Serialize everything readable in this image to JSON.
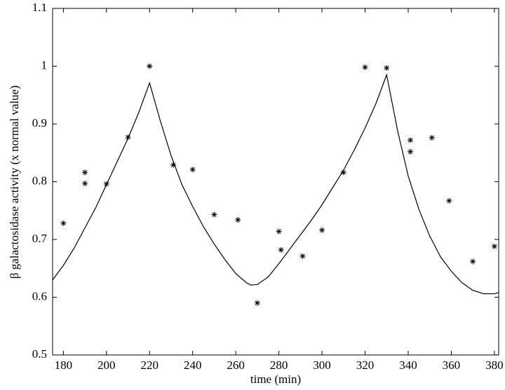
{
  "chart_data": {
    "type": "scatter",
    "x_label": "time (min)",
    "y_label": "β galactosidase activity (x normal value)",
    "xlim": [
      175,
      382
    ],
    "ylim": [
      0.5,
      1.1
    ],
    "xticks": [
      180,
      200,
      220,
      240,
      260,
      280,
      300,
      320,
      340,
      360,
      380
    ],
    "yticks": [
      0.5,
      0.6,
      0.7,
      0.8,
      0.9,
      1,
      1.1
    ],
    "series": [
      {
        "mode": "markers",
        "color": "#000000",
        "x": [
          180,
          190,
          190,
          200,
          210,
          220,
          231,
          240,
          250,
          261,
          270,
          280,
          281,
          291,
          300,
          310,
          320,
          330,
          341,
          341,
          351,
          359,
          370,
          380
        ],
        "values": [
          0.728,
          0.816,
          0.797,
          0.796,
          0.877,
          1.0,
          0.829,
          0.821,
          0.743,
          0.734,
          0.59,
          0.714,
          0.682,
          0.671,
          0.716,
          0.816,
          0.998,
          0.997,
          0.872,
          0.852,
          0.876,
          0.767,
          0.662,
          0.688
        ]
      },
      {
        "mode": "line",
        "color": "#000000",
        "x": [
          175,
          180,
          185,
          190,
          195,
          200,
          205,
          210,
          215,
          220,
          225,
          230,
          235,
          240,
          245,
          250,
          255,
          260,
          265,
          267,
          270,
          275,
          280,
          285,
          290,
          295,
          300,
          305,
          310,
          315,
          320,
          325,
          330,
          335,
          340,
          345,
          350,
          355,
          360,
          365,
          370,
          375,
          380,
          382
        ],
        "values": [
          0.63,
          0.655,
          0.685,
          0.72,
          0.755,
          0.795,
          0.835,
          0.875,
          0.92,
          0.971,
          0.905,
          0.845,
          0.795,
          0.757,
          0.722,
          0.692,
          0.665,
          0.641,
          0.625,
          0.621,
          0.622,
          0.635,
          0.658,
          0.683,
          0.708,
          0.733,
          0.76,
          0.79,
          0.82,
          0.855,
          0.893,
          0.935,
          0.985,
          0.89,
          0.81,
          0.752,
          0.706,
          0.67,
          0.645,
          0.625,
          0.612,
          0.606,
          0.606,
          0.608
        ]
      }
    ]
  }
}
